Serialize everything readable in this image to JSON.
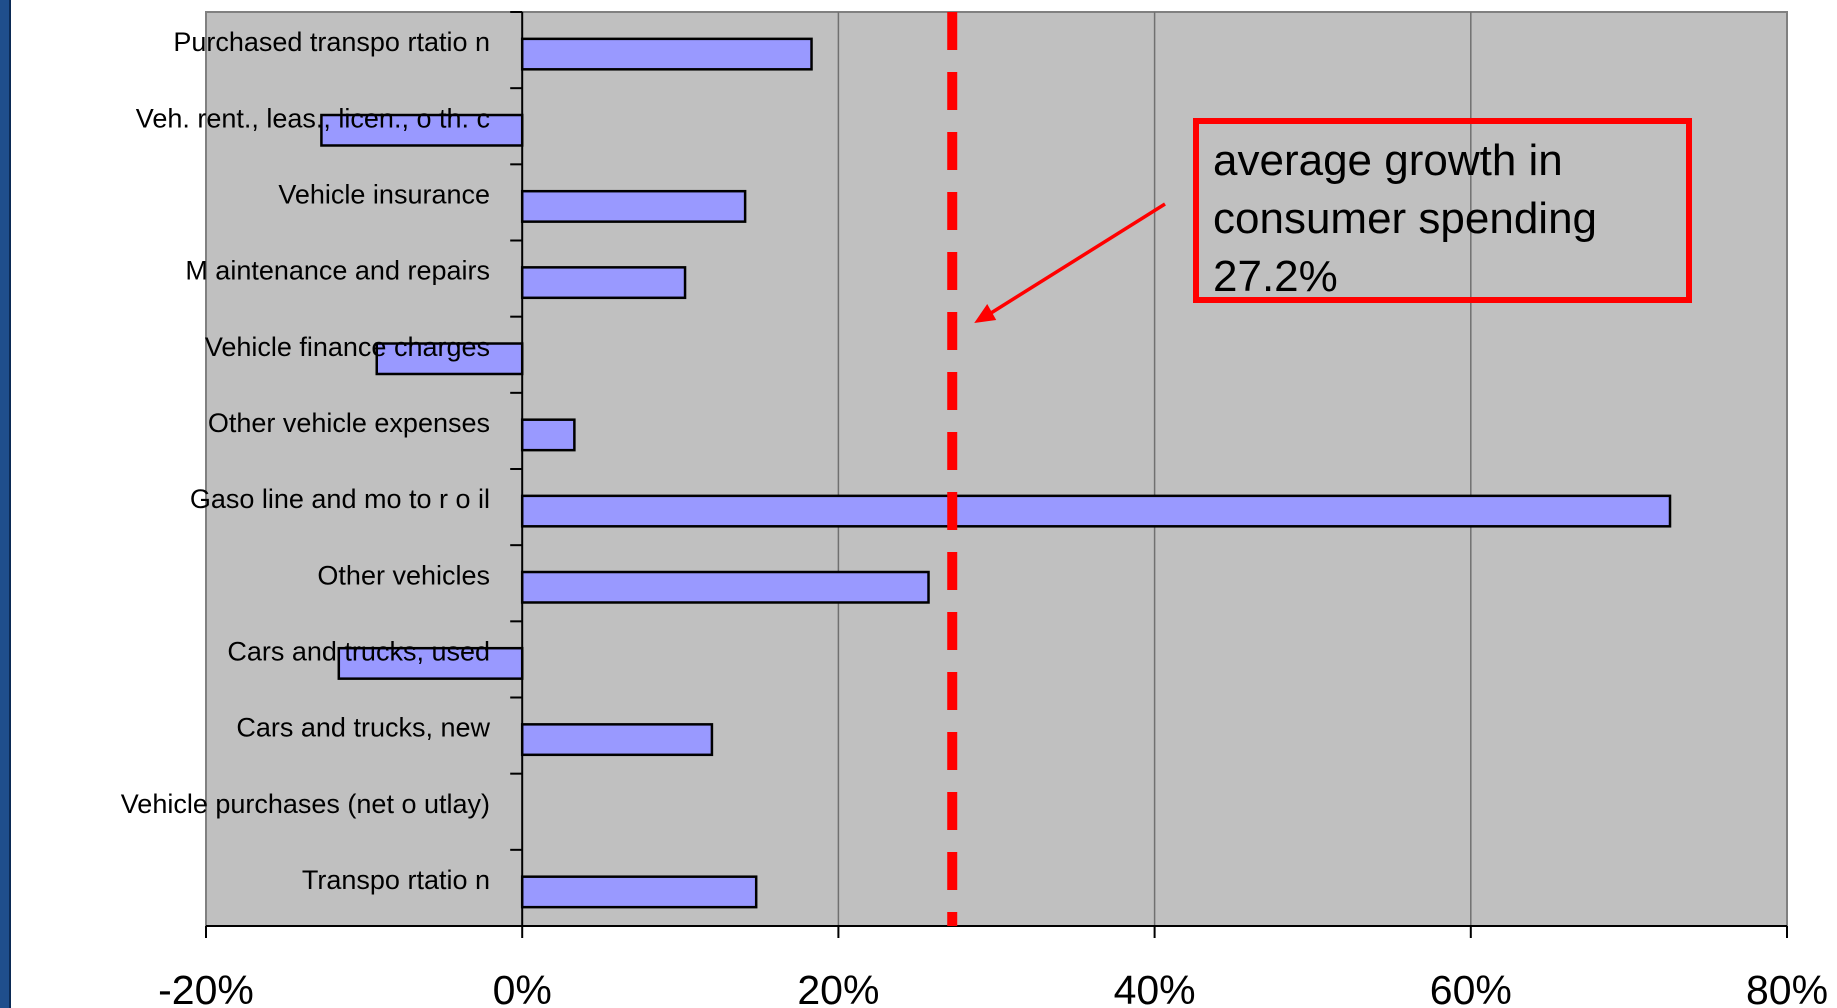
{
  "colors": {
    "plot_bg": "#c0c0c0",
    "bar_fill": "#9999ff",
    "bar_stroke": "#000000",
    "gridline": "#707070",
    "average_line": "#ff0000",
    "annotation": "#ff0000"
  },
  "annotation": {
    "lines": [
      "average growth in",
      "consumer spending",
      "27.2%"
    ]
  },
  "chart_data": {
    "type": "bar",
    "orientation": "horizontal",
    "categories": [
      "Purchased transpo rtatio n",
      "Veh. rent., leas., licen., o th. c",
      "Vehicle insurance",
      "M aintenance and repairs",
      "Vehicle finance charges",
      "Other vehicle expenses",
      "Gaso line and mo to r o il",
      "Other vehicles",
      "Cars and trucks, used",
      "Cars and trucks, new",
      "Vehicle purchases (net o utlay)",
      "Transpo rtatio n"
    ],
    "values": [
      18.3,
      -12.7,
      14.1,
      10.3,
      -9.2,
      3.3,
      72.6,
      25.7,
      -11.6,
      12.0,
      null,
      14.8
    ],
    "xlim": [
      -20,
      80
    ],
    "xticks": [
      -20,
      0,
      20,
      40,
      60,
      80
    ],
    "tick_labels": [
      "-20%",
      "0%",
      "20%",
      "40%",
      "60%",
      "80%"
    ],
    "reference_line": {
      "value": 27.2,
      "style": "dashed"
    },
    "grid": "vertical",
    "legend": "none"
  }
}
